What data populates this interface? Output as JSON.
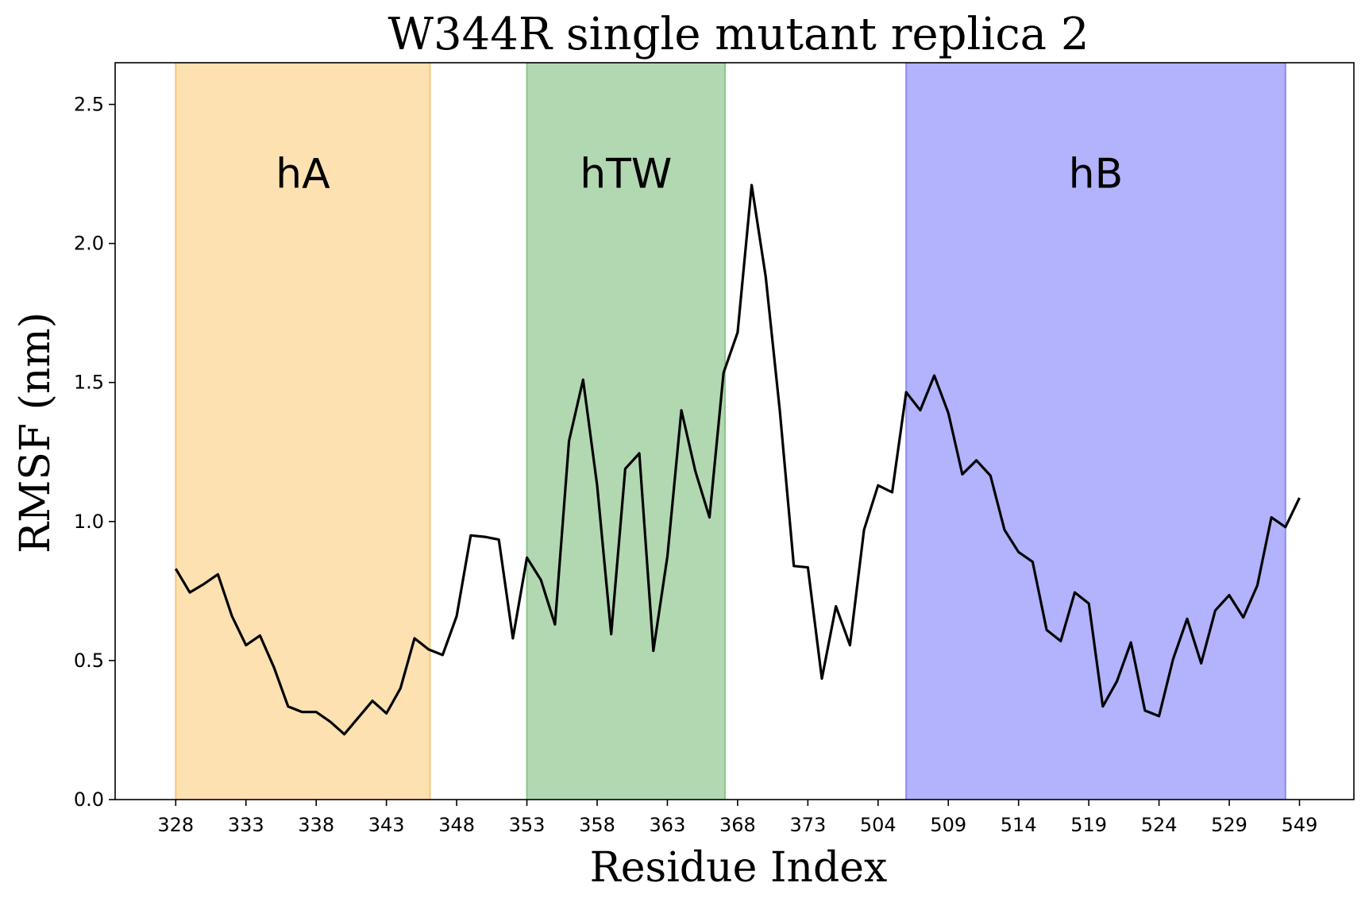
{
  "chart_data": {
    "type": "line",
    "title": "W344R single mutant replica 2",
    "xlabel": "Residue Index",
    "ylabel": "RMSF (nm)",
    "ylim": [
      0,
      2.65
    ],
    "yticks": [
      "0.0",
      "0.5",
      "1.0",
      "1.5",
      "2.0",
      "2.5"
    ],
    "xtick_labels": [
      "328",
      "333",
      "338",
      "343",
      "348",
      "353",
      "358",
      "363",
      "368",
      "373",
      "504",
      "509",
      "514",
      "519",
      "524",
      "529",
      "549"
    ],
    "xtick_index": [
      0,
      5,
      10,
      15,
      20,
      25,
      30,
      35,
      40,
      45,
      50,
      55,
      60,
      65,
      70,
      75,
      80
    ],
    "regions": [
      {
        "label": "hA",
        "start_index": 0,
        "end_index": 18.1,
        "color": "#fde1b1",
        "edge": "#f5c878"
      },
      {
        "label": "hTW",
        "start_index": 25,
        "end_index": 39.1,
        "color": "#b2d8b2",
        "edge": "#8cc48c"
      },
      {
        "label": "hB",
        "start_index": 52,
        "end_index": 79.0,
        "color": "#b2b2fd",
        "edge": "#8c8cf0"
      }
    ],
    "series": [
      {
        "color": "#000000",
        "values": [
          0.83,
          0.745,
          0.775,
          0.81,
          0.66,
          0.555,
          0.59,
          0.475,
          0.335,
          0.315,
          0.315,
          0.28,
          0.235,
          0.295,
          0.355,
          0.31,
          0.4,
          0.58,
          0.54,
          0.52,
          0.66,
          0.95,
          0.945,
          0.935,
          0.58,
          0.87,
          0.79,
          0.63,
          1.29,
          1.51,
          1.13,
          0.595,
          1.19,
          1.245,
          0.535,
          0.875,
          1.4,
          1.18,
          1.015,
          1.535,
          1.68,
          2.21,
          1.88,
          1.4,
          0.84,
          0.835,
          0.435,
          0.695,
          0.555,
          0.97,
          1.13,
          1.105,
          1.465,
          1.4,
          1.525,
          1.39,
          1.17,
          1.22,
          1.165,
          0.97,
          0.89,
          0.855,
          0.61,
          0.57,
          0.745,
          0.705,
          0.335,
          0.425,
          0.565,
          0.32,
          0.3,
          0.505,
          0.65,
          0.49,
          0.68,
          0.735,
          0.655,
          0.77,
          1.015,
          0.98,
          1.085
        ]
      }
    ]
  }
}
